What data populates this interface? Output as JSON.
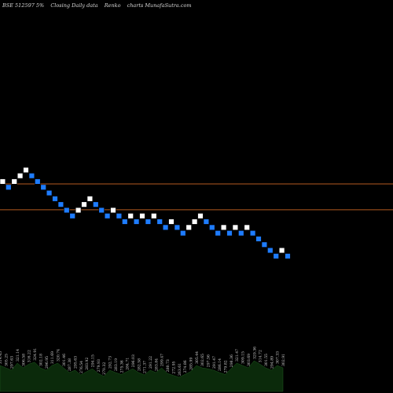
{
  "header": {
    "symbol": "BSE 512597 5%",
    "chart_kind": "Closing Daily data",
    "chart_style": "Renko",
    "site": "charts MunafaSutra.com"
  },
  "colors": {
    "background": "#000000",
    "up_brick": "#ffffff",
    "down_brick": "#1e7cff",
    "brick_border": "#000000",
    "level_line": "#b35a1f",
    "volume_fill": "#0b2a0b",
    "volume_label": "#cfcfcf"
  },
  "chart_data": {
    "type": "renko",
    "brick_levels": [
      13,
      12,
      13,
      14,
      15,
      14,
      13,
      12,
      11,
      10,
      9,
      8,
      7,
      8,
      9,
      10,
      9,
      8,
      7,
      8,
      7,
      6,
      7,
      6,
      7,
      6,
      7,
      6,
      5,
      6,
      5,
      4,
      5,
      6,
      7,
      6,
      5,
      4,
      5,
      4,
      5,
      4,
      5,
      4,
      3,
      2,
      1,
      0,
      1,
      0
    ],
    "brick_direction": [
      "up",
      "down",
      "up",
      "up",
      "up",
      "down",
      "down",
      "down",
      "down",
      "down",
      "down",
      "down",
      "down",
      "up",
      "up",
      "up",
      "down",
      "down",
      "down",
      "up",
      "down",
      "down",
      "up",
      "down",
      "up",
      "down",
      "up",
      "down",
      "down",
      "up",
      "down",
      "down",
      "up",
      "up",
      "up",
      "down",
      "down",
      "down",
      "up",
      "down",
      "up",
      "down",
      "up",
      "down",
      "down",
      "down",
      "down",
      "down",
      "up",
      "down"
    ],
    "reference_levels": [
      12.1,
      7.6
    ],
    "volume": {
      "values": [
        0.55,
        0.5,
        0.45,
        0.6,
        0.5,
        0.58,
        0.62,
        0.5,
        0.45,
        0.55,
        0.6,
        0.5,
        0.4,
        0.45,
        0.35,
        0.42,
        0.48,
        0.38,
        0.32,
        0.45,
        0.4,
        0.36,
        0.42,
        0.48,
        0.4,
        0.35,
        0.45,
        0.4,
        0.5,
        0.38,
        0.34,
        0.3,
        0.36,
        0.42,
        0.55,
        0.5,
        0.48,
        0.45,
        0.4,
        0.36,
        0.48,
        0.6,
        0.55,
        0.5,
        0.65,
        0.58,
        0.5,
        0.45,
        0.55,
        0.5
      ],
      "labels": [
        "314.45",
        "305.25",
        "297.63",
        "321.14",
        "306.58",
        "316.22",
        "324.91",
        "302.18",
        "296.95",
        "311.69",
        "320.74",
        "301.46",
        "287.38",
        "295.63",
        "276.54",
        "283.92",
        "294.15",
        "279.93",
        "270.32",
        "292.73",
        "283.19",
        "275.36",
        "284.71",
        "296.03",
        "282.58",
        "271.37",
        "291.22",
        "283.84",
        "299.47",
        "280.73",
        "272.95",
        "263.61",
        "274.86",
        "285.99",
        "305.44",
        "302.65",
        "297.56",
        "291.47",
        "286.14",
        "279.82",
        "298.36",
        "321.47",
        "309.15",
        "303.69",
        "329.36",
        "314.72",
        "301.55",
        "294.89",
        "307.33",
        "302.91"
      ]
    }
  }
}
